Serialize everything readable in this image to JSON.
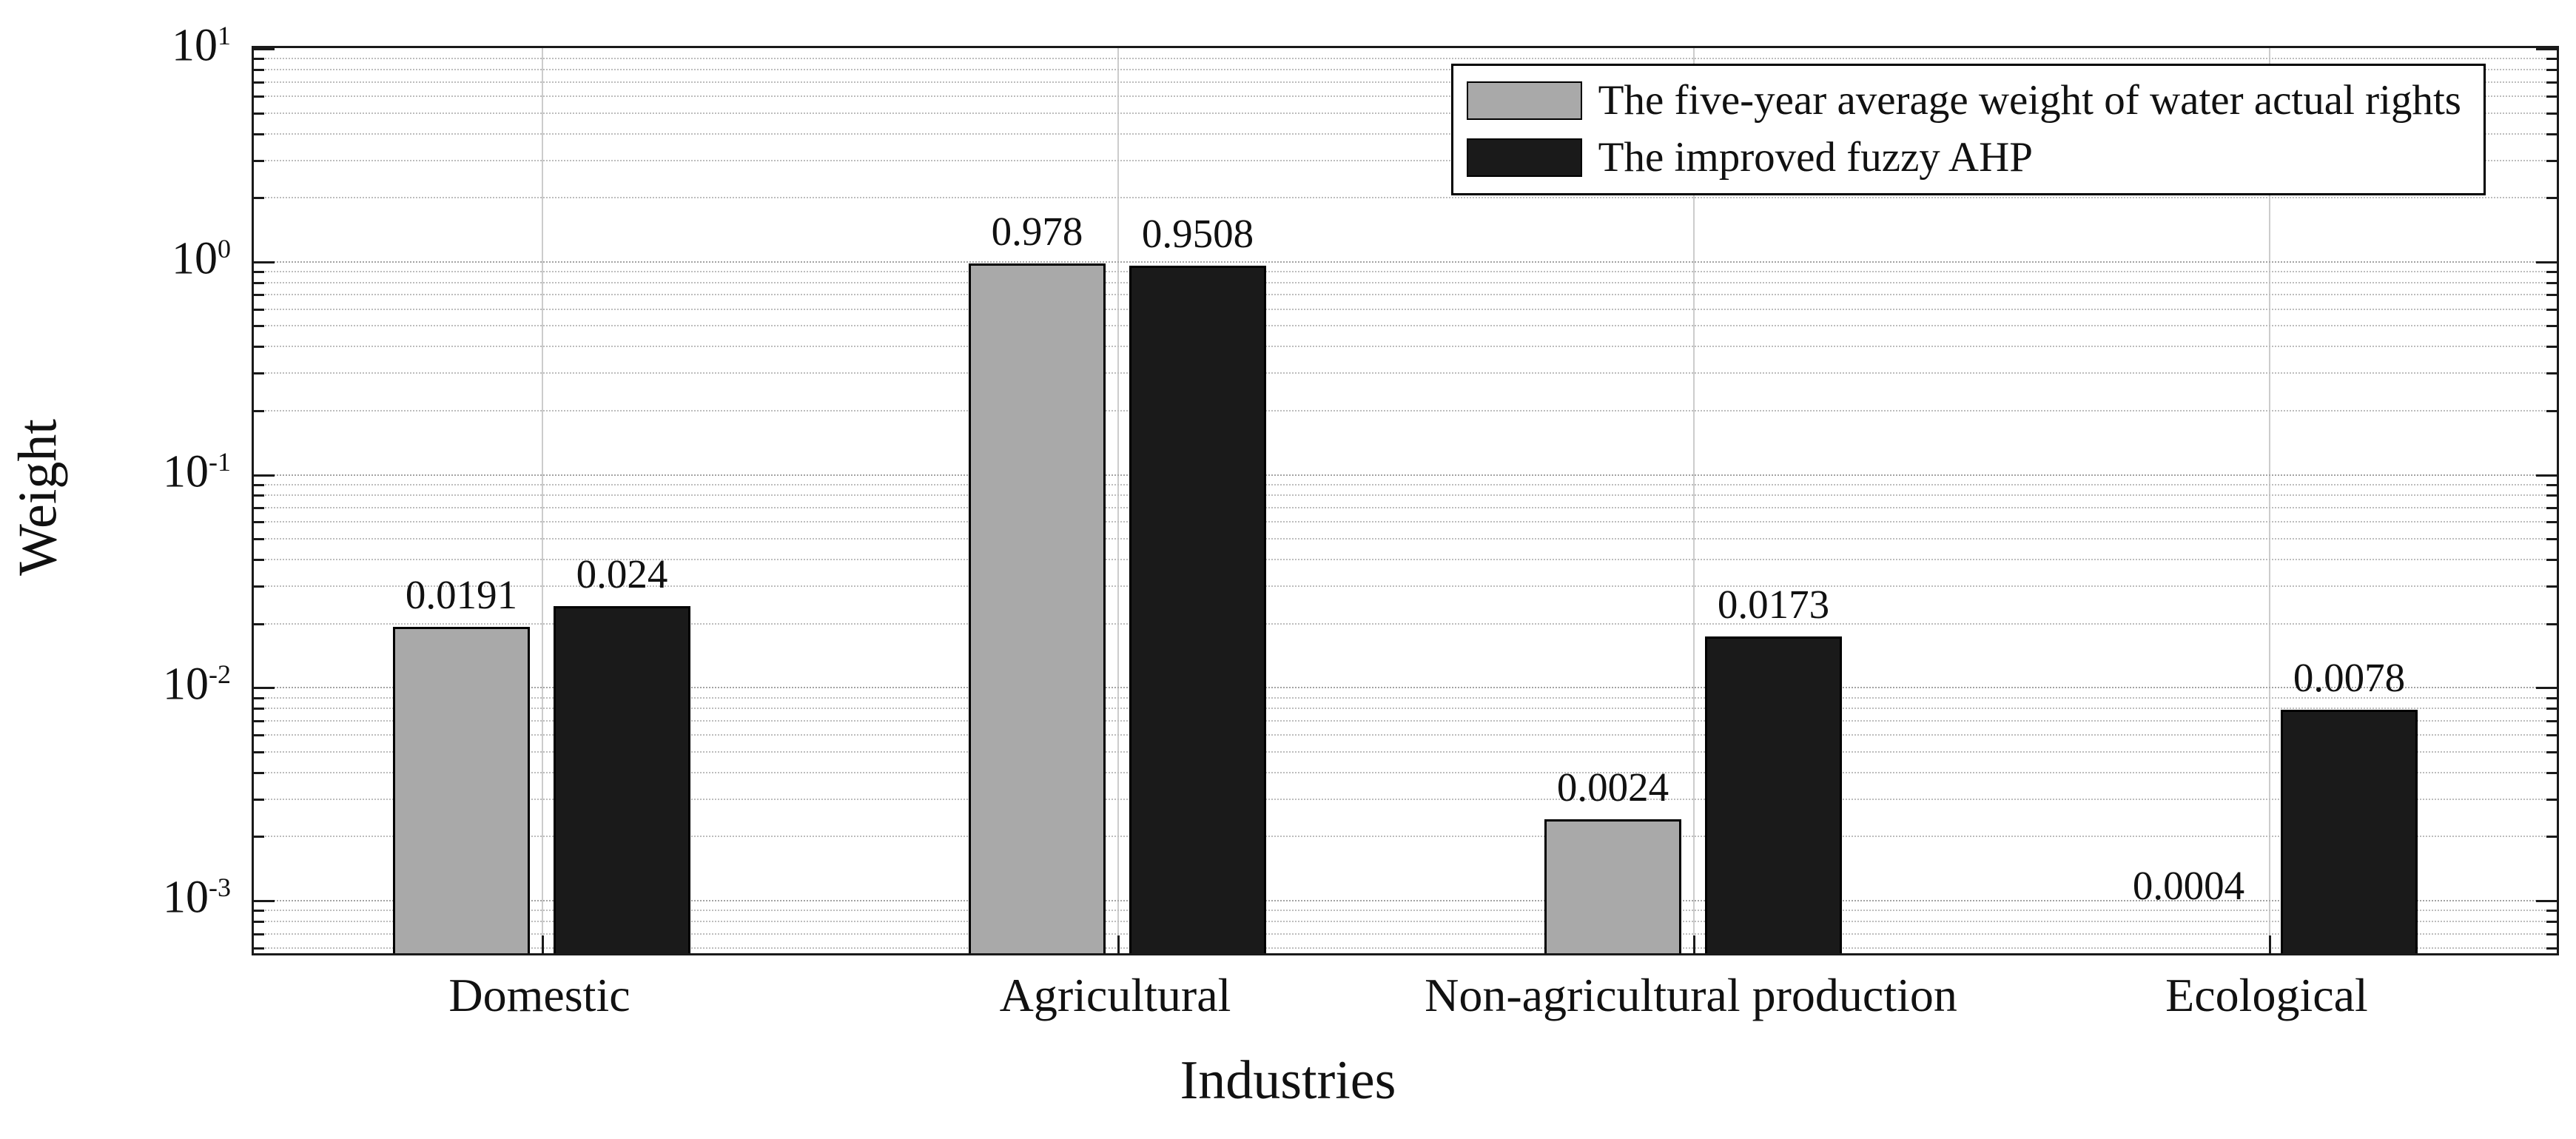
{
  "chart_data": {
    "type": "bar",
    "title": "",
    "xlabel": "Industries",
    "ylabel": "Weight",
    "categories": [
      "Domestic",
      "Agricultural",
      "Non-agricultural production",
      "Ecological"
    ],
    "series": [
      {
        "name": "The five-year average weight of water actual rights",
        "color": "#a9a9a9",
        "values": [
          0.0191,
          0.978,
          0.0024,
          0.0004
        ],
        "labels": [
          "0.0191",
          "0.978",
          "0.0024",
          "0.0004"
        ]
      },
      {
        "name": "The improved fuzzy AHP",
        "color": "#1a1a1a",
        "values": [
          0.024,
          0.9508,
          0.0173,
          0.0078
        ],
        "labels": [
          "0.024",
          "0.9508",
          "0.0173",
          "0.0078"
        ]
      }
    ],
    "y_axis": {
      "scale": "log",
      "min_exp": -3.25,
      "max_exp": 1,
      "tick_exponents": [
        1,
        0,
        -1,
        -2,
        -3
      ],
      "grid": "dotted"
    },
    "legend": {
      "position": "top-right"
    }
  }
}
